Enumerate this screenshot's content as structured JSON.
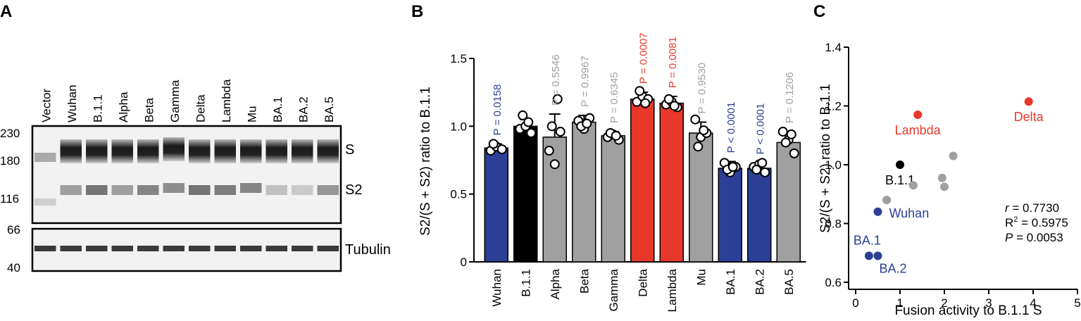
{
  "colors": {
    "blue": "#2b3f96",
    "black": "#000000",
    "gray": "#a0a0a0",
    "red": "#e8382a",
    "text_gray": "#a0a0a0",
    "text_blue": "#2b3f96",
    "text_red": "#e8382a"
  },
  "panel_a": {
    "letter": "A",
    "lanes": [
      "Vector",
      "Wuhan",
      "B.1.1",
      "Alpha",
      "Beta",
      "Gamma",
      "Delta",
      "Lambda",
      "Mu",
      "BA.1",
      "BA.2",
      "BA.5"
    ],
    "upper_markers": [
      "230",
      "180",
      "116"
    ],
    "lower_markers": [
      "66",
      "40"
    ],
    "right_labels": [
      "S",
      "S2",
      "Tubulin"
    ],
    "s2_intensity": [
      0.0,
      0.45,
      0.7,
      0.45,
      0.6,
      0.55,
      0.7,
      0.65,
      0.6,
      0.25,
      0.2,
      0.5
    ]
  },
  "chart_data": [
    {
      "panel": "B",
      "type": "bar",
      "letter": "B",
      "ylabel": "S2/(S + S2) ratio to B.1.1",
      "ylim": [
        0,
        1.5
      ],
      "yticks": [
        "0",
        "0.5",
        "1.0",
        "1.5"
      ],
      "categories": [
        "Wuhan",
        "B.1.1",
        "Alpha",
        "Beta",
        "Gamma",
        "Delta",
        "Lambda",
        "Mu",
        "BA.1",
        "BA.2",
        "BA.5"
      ],
      "values": [
        0.84,
        1.0,
        0.92,
        1.03,
        0.93,
        1.2,
        1.17,
        0.95,
        0.69,
        0.69,
        0.88
      ],
      "errors": [
        0.03,
        0.05,
        0.17,
        0.05,
        0.03,
        0.05,
        0.05,
        0.08,
        0.05,
        0.04,
        0.08
      ],
      "colors": [
        "blue",
        "black",
        "gray",
        "gray",
        "gray",
        "red",
        "red",
        "gray",
        "blue",
        "blue",
        "gray"
      ],
      "points": [
        [
          0.82,
          0.85,
          0.83,
          0.87
        ],
        [
          0.98,
          1.0,
          0.95,
          1.08,
          1.03
        ],
        [
          0.82,
          0.72,
          0.96,
          1.0,
          1.2
        ],
        [
          1.04,
          0.98,
          1.06,
          1.0,
          1.02
        ],
        [
          0.92,
          0.94,
          0.9,
          0.95,
          0.93
        ],
        [
          1.18,
          1.22,
          1.2,
          1.26,
          1.17
        ],
        [
          1.16,
          1.18,
          1.14,
          1.2,
          1.15
        ],
        [
          1.05,
          0.92,
          0.95,
          0.85,
          0.97
        ],
        [
          0.73,
          0.66,
          0.7,
          0.68,
          0.7
        ],
        [
          0.7,
          0.72,
          0.66,
          0.68,
          0.73
        ],
        [
          0.96,
          0.9,
          0.8,
          0.88,
          0.94
        ]
      ],
      "pvalues": [
        "P = 0.0158",
        "",
        "P = 0.5546",
        "P = 0.9967",
        "P = 0.6345",
        "P = 0.0007",
        "P = 0.0081",
        "P = 0.9530",
        "P < 0.0001",
        "P < 0.0001",
        "P = 0.1206"
      ],
      "pvalue_colors": [
        "text_blue",
        "",
        "text_gray",
        "text_gray",
        "text_gray",
        "text_red",
        "text_red",
        "text_gray",
        "text_blue",
        "text_blue",
        "text_gray"
      ]
    },
    {
      "panel": "C",
      "type": "scatter",
      "letter": "C",
      "xlabel": "Fusion activity to B.1.1 S",
      "ylabel": "S2/(S + S2) ratio to B.1.1",
      "xlim": [
        0,
        5
      ],
      "ylim": [
        0.6,
        1.4
      ],
      "xticks": [
        "0",
        "1",
        "2",
        "3",
        "4",
        "5"
      ],
      "yticks": [
        "0.6",
        "0.8",
        "1.0",
        "1.2",
        "1.4"
      ],
      "points": [
        {
          "x": 0.5,
          "y": 0.84,
          "color": "blue",
          "label": "Wuhan"
        },
        {
          "x": 1.0,
          "y": 1.0,
          "color": "black",
          "label": "B.1.1"
        },
        {
          "x": 0.3,
          "y": 0.69,
          "color": "blue",
          "label": "BA.1"
        },
        {
          "x": 0.5,
          "y": 0.69,
          "color": "blue",
          "label": "BA.2"
        },
        {
          "x": 1.4,
          "y": 1.17,
          "color": "red",
          "label": "Lambda"
        },
        {
          "x": 3.9,
          "y": 1.215,
          "color": "red",
          "label": "Delta"
        },
        {
          "x": 0.7,
          "y": 0.88,
          "color": "gray",
          "label": ""
        },
        {
          "x": 1.3,
          "y": 0.93,
          "color": "gray",
          "label": ""
        },
        {
          "x": 1.95,
          "y": 0.955,
          "color": "gray",
          "label": ""
        },
        {
          "x": 2.0,
          "y": 0.925,
          "color": "gray",
          "label": ""
        },
        {
          "x": 2.2,
          "y": 1.03,
          "color": "gray",
          "label": ""
        }
      ],
      "stats": {
        "r_label": "r",
        "r_value": " = 0.7730",
        "r2_label": "R",
        "r2_sup": "2",
        "r2_value": " = 0.5975",
        "p_label": "P",
        "p_value": " = 0.0053"
      }
    }
  ]
}
